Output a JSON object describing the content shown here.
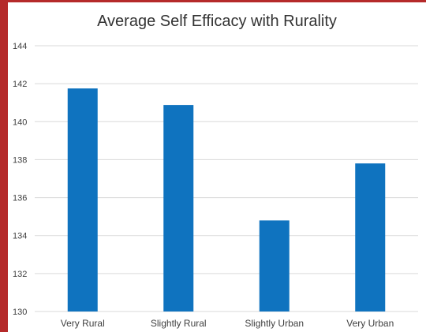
{
  "chart_data": {
    "type": "bar",
    "title": "Average Self Efficacy with Rurality",
    "categories": [
      "Very Rural",
      "Slightly Rural",
      "Slightly Urban",
      "Very Urban"
    ],
    "values": [
      141.75,
      140.88,
      134.8,
      137.8
    ],
    "ylim": [
      130,
      144
    ],
    "yticks": [
      130,
      132,
      134,
      136,
      138,
      140,
      142,
      144
    ],
    "xlabel": "",
    "ylabel": "",
    "grid": true,
    "bar_color": "#0f73bf",
    "grid_color": "#d9d9d9",
    "frame_color": "#b52a2a"
  }
}
